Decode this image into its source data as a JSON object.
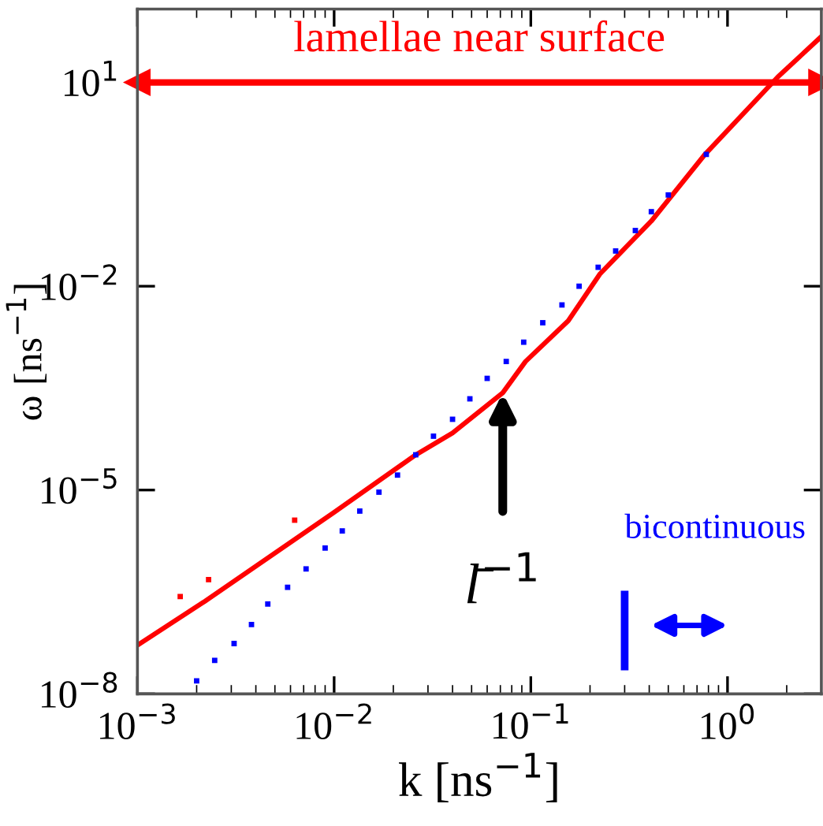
{
  "chart_data": {
    "type": "line",
    "xlabel": "k [ns$^{−1}$]",
    "ylabel": "ω [ns$^{−1}$]",
    "log": "xy",
    "xlim": [
      0.001,
      3
    ],
    "ylim": [
      1e-08,
      120
    ],
    "xticks": [
      {
        "value": 0.001,
        "label": "10$^{−3}$"
      },
      {
        "value": 0.01,
        "label": "10$^{−2}$"
      },
      {
        "value": 0.1,
        "label": "10$^{−1}$"
      },
      {
        "value": 1,
        "label": "10$^{0}$"
      }
    ],
    "yticks": [
      {
        "value": 1e-08,
        "label": "10$^{−8}$"
      },
      {
        "value": 1e-05,
        "label": "10$^{−5}$"
      },
      {
        "value": 0.01,
        "label": "10$^{−2}$"
      },
      {
        "value": 10,
        "label": "10$^{1}$"
      }
    ],
    "grid": false,
    "legend": false,
    "series": [
      {
        "color": "#ff0000",
        "x": [
          0.001,
          0.0022,
          0.01,
          0.026,
          0.04,
          0.072,
          0.094,
          0.155,
          0.224,
          0.41,
          0.77,
          1.8,
          2.97
        ],
        "values": [
          5.2e-08,
          2.3e-07,
          4.7e-06,
          3.3e-05,
          6.9e-05,
          0.00027,
          0.00078,
          0.0031,
          0.015,
          0.091,
          0.88,
          12,
          46
        ]
      },
      {
        "type": "scatter",
        "color": "#ff0000",
        "x": [
          0.00165,
          0.0023,
          0.0063
        ],
        "values": [
          2.7e-07,
          4.8e-07,
          3.6e-06
        ]
      },
      {
        "type": "scatter",
        "color": "#0000ff",
        "x": [
          0.002,
          0.00247,
          0.0031,
          0.0038,
          0.0046,
          0.0058,
          0.0072,
          0.009,
          0.011,
          0.0135,
          0.0169,
          0.021,
          0.026,
          0.032,
          0.04,
          0.049,
          0.06,
          0.075,
          0.092,
          0.115,
          0.144,
          0.176,
          0.22,
          0.27,
          0.34,
          0.41,
          0.5,
          0.78
        ],
        "values": [
          1.55e-08,
          3.1e-08,
          5.5e-08,
          1.05e-07,
          2.1e-07,
          3.7e-07,
          6.9e-07,
          1.4e-06,
          2.5e-06,
          4.9e-06,
          9.3e-06,
          1.66e-05,
          3.3e-05,
          6.2e-05,
          0.00011,
          0.00022,
          0.00044,
          0.00078,
          0.0015,
          0.0029,
          0.0053,
          0.01,
          0.019,
          0.033,
          0.066,
          0.125,
          0.22,
          0.87
        ]
      }
    ],
    "ref_lines": [
      {
        "axis": "y",
        "value": 10,
        "label": "lamellae near surface",
        "color": "#ff0000"
      },
      {
        "axis": "x",
        "value": 0.3,
        "label": "bicontinuous",
        "color": "#0000ff"
      }
    ],
    "annotations": [
      {
        "text": "l̄$^{−1}$",
        "x": 0.072,
        "y": 0.00027
      }
    ]
  }
}
